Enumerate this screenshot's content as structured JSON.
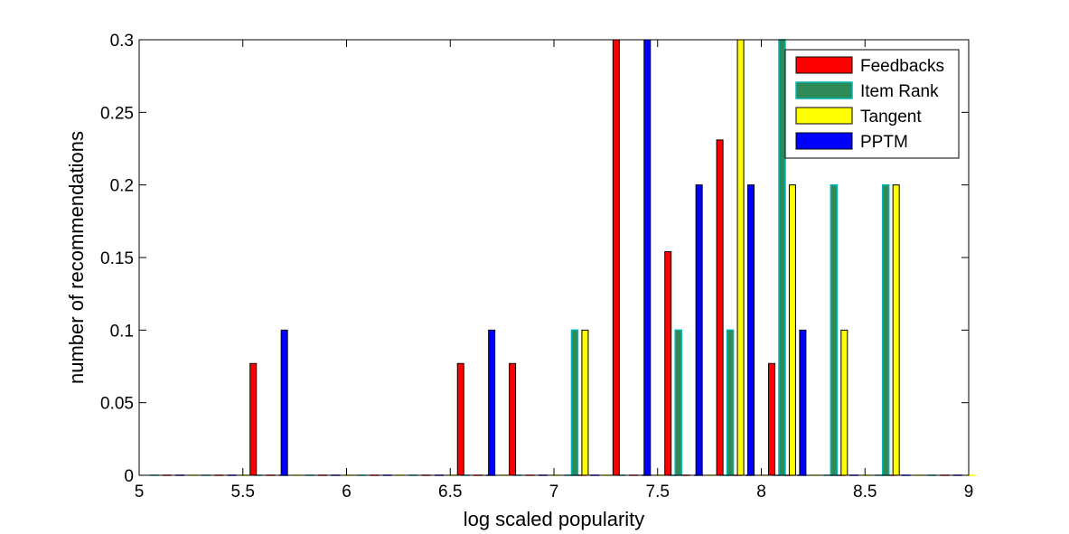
{
  "chart_data": {
    "type": "bar",
    "title": "",
    "xlabel": "log scaled popularity",
    "ylabel": "number of recommendations",
    "xlim": [
      5,
      9
    ],
    "ylim": [
      0,
      0.3
    ],
    "xticks": [
      "5",
      "5.5",
      "6",
      "6.5",
      "7",
      "7.5",
      "8",
      "8.5",
      "9"
    ],
    "yticks": [
      "0",
      "0.05",
      "0.1",
      "0.15",
      "0.2",
      "0.25",
      "0.3"
    ],
    "legend_position": "top-right",
    "grid": false,
    "series": [
      {
        "name": "Feedbacks",
        "color": "#ff0000",
        "x": [
          5.55,
          6.55,
          6.8,
          7.3,
          7.55,
          7.8,
          8.05
        ],
        "values": [
          0.077,
          0.077,
          0.077,
          0.3,
          0.154,
          0.231,
          0.077
        ]
      },
      {
        "name": "Item Rank",
        "color": "#2e8b57",
        "edge": "#00b4b4",
        "x": [
          7.1,
          7.6,
          7.85,
          8.1,
          8.35,
          8.6
        ],
        "values": [
          0.1,
          0.1,
          0.1,
          0.3,
          0.2,
          0.2
        ]
      },
      {
        "name": "Tangent",
        "color": "#ffff00",
        "x": [
          7.15,
          7.9,
          8.15,
          8.4,
          8.65
        ],
        "values": [
          0.1,
          0.3,
          0.2,
          0.1,
          0.2
        ]
      },
      {
        "name": "PPTM",
        "color": "#0000ff",
        "x": [
          5.7,
          6.7,
          7.45,
          7.7,
          7.95,
          8.2
        ],
        "values": [
          0.1,
          0.1,
          0.3,
          0.2,
          0.2,
          0.1
        ]
      }
    ]
  }
}
